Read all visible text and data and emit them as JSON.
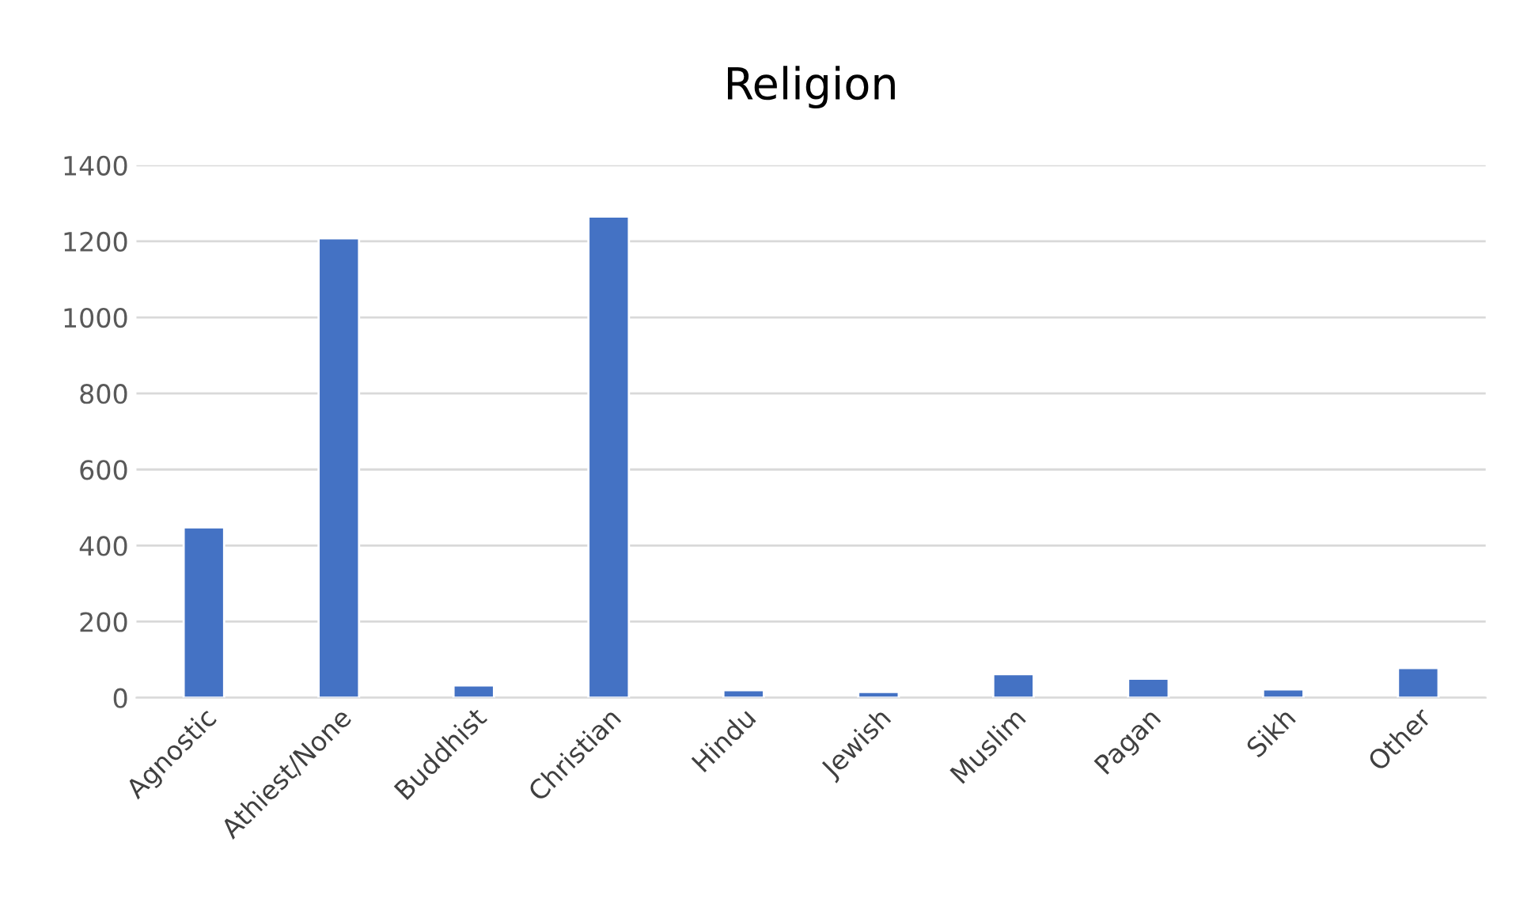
{
  "chart_data": {
    "type": "bar",
    "title": "Religion",
    "categories": [
      "Agnostic",
      "Athiest/None",
      "Buddhist",
      "Christian",
      "Hindu",
      "Jewish",
      "Muslim",
      "Pagan",
      "Sikh",
      "Other"
    ],
    "values": [
      448,
      1208,
      32,
      1265,
      20,
      15,
      62,
      50,
      22,
      78
    ],
    "color": "#4472c4",
    "ylim": [
      0,
      1400
    ],
    "yticks": [
      0,
      200,
      400,
      600,
      800,
      1000,
      1200,
      1400
    ],
    "grid": "y"
  }
}
